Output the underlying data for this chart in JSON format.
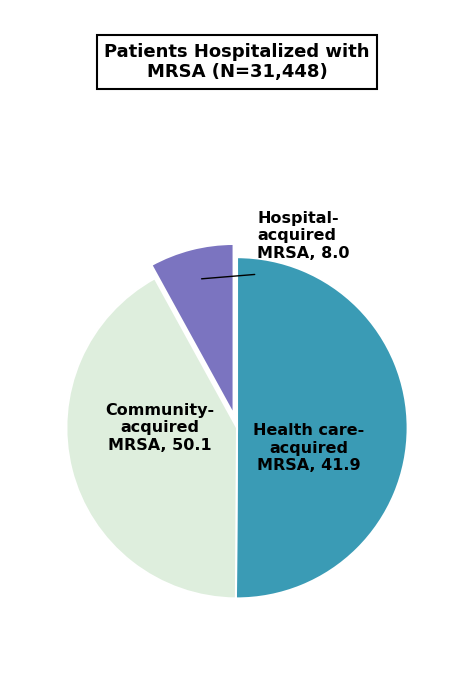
{
  "title": "Patients Hospitalized with\nMRSA (N=31,448)",
  "slices": [
    50.1,
    41.9,
    8.0
  ],
  "slice_order": [
    "community",
    "healthcare",
    "hospital"
  ],
  "colors": [
    "#3a9bb5",
    "#deeedd",
    "#7b74c0"
  ],
  "startangle": 90,
  "explode": [
    0,
    0,
    0.08
  ],
  "community_label": "Community-\nacquired\nMRSA, 50.1",
  "healthcare_label": "Health care-\nacquired\nMRSA, 41.9",
  "hospital_label": "Hospital-\nacquired\nMRSA, 8.0",
  "label_fontsize": 11.5,
  "title_fontsize": 13,
  "background_color": "#ffffff",
  "edgecolor": "#ffffff",
  "linewidth": 1.5
}
